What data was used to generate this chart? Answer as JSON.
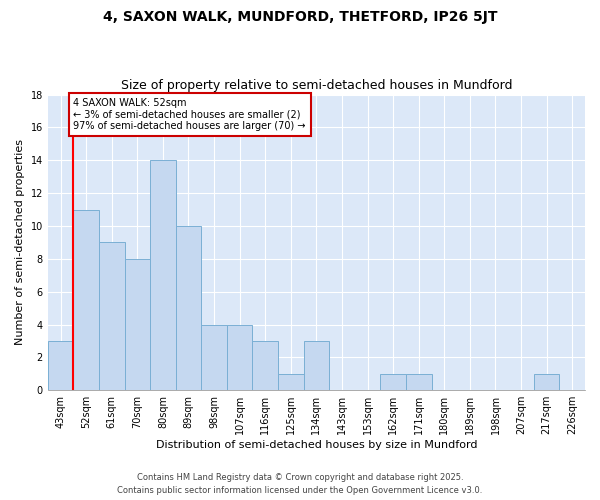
{
  "title": "4, SAXON WALK, MUNDFORD, THETFORD, IP26 5JT",
  "subtitle": "Size of property relative to semi-detached houses in Mundford",
  "xlabel": "Distribution of semi-detached houses by size in Mundford",
  "ylabel": "Number of semi-detached properties",
  "categories": [
    "43sqm",
    "52sqm",
    "61sqm",
    "70sqm",
    "80sqm",
    "89sqm",
    "98sqm",
    "107sqm",
    "116sqm",
    "125sqm",
    "134sqm",
    "143sqm",
    "153sqm",
    "162sqm",
    "171sqm",
    "180sqm",
    "189sqm",
    "198sqm",
    "207sqm",
    "217sqm",
    "226sqm"
  ],
  "values": [
    3,
    11,
    9,
    8,
    14,
    10,
    4,
    4,
    3,
    1,
    3,
    0,
    0,
    1,
    1,
    0,
    0,
    0,
    0,
    1,
    0
  ],
  "bar_color": "#c5d8f0",
  "bar_edge_color": "#7aafd4",
  "background_color": "#dce8f8",
  "grid_color": "#ffffff",
  "red_line_index": 1,
  "annotation_text": "4 SAXON WALK: 52sqm\n← 3% of semi-detached houses are smaller (2)\n97% of semi-detached houses are larger (70) →",
  "annotation_box_color": "#ffffff",
  "annotation_box_edge": "#cc0000",
  "ylim": [
    0,
    18
  ],
  "yticks": [
    0,
    2,
    4,
    6,
    8,
    10,
    12,
    14,
    16,
    18
  ],
  "footer_line1": "Contains HM Land Registry data © Crown copyright and database right 2025.",
  "footer_line2": "Contains public sector information licensed under the Open Government Licence v3.0.",
  "title_fontsize": 10,
  "subtitle_fontsize": 9,
  "axis_label_fontsize": 8,
  "tick_fontsize": 7,
  "annotation_fontsize": 7,
  "footer_fontsize": 6
}
